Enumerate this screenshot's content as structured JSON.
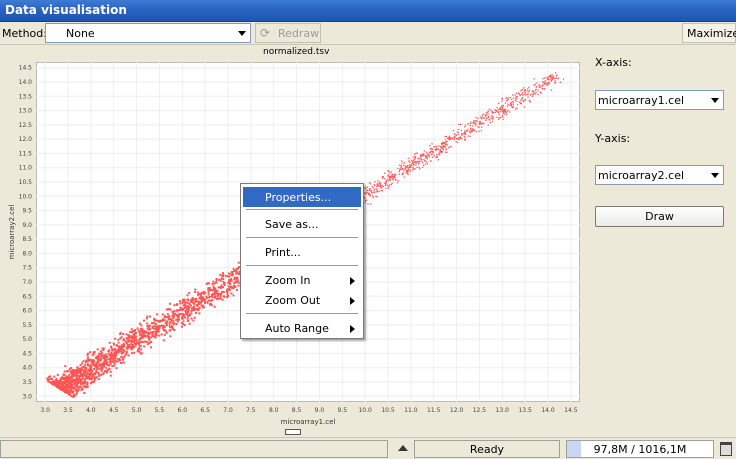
{
  "window": {
    "title": "Data visualisation"
  },
  "toolbar": {
    "method_label": "Method:",
    "method_value": "None",
    "redraw_label": "Redraw",
    "maximize_label": "Maximize"
  },
  "side": {
    "x_axis_label": "X-axis:",
    "x_axis_value": "microarray1.cel",
    "y_axis_label": "Y-axis:",
    "y_axis_value": "microarray2.cel",
    "draw_label": "Draw"
  },
  "context_menu": {
    "items": [
      {
        "label": "Properties..."
      },
      {
        "label": "Save as..."
      },
      {
        "label": "Print..."
      },
      {
        "label": "Zoom In"
      },
      {
        "label": "Zoom Out"
      },
      {
        "label": "Auto Range"
      }
    ]
  },
  "status": {
    "text": "Ready",
    "memory": "97,8M / 1016,1M",
    "memory_fraction": 0.096
  },
  "colors": {
    "points": "#ff5555",
    "titlebar": "#2a63c2",
    "highlight": "#316ac5"
  },
  "chart_data": {
    "type": "scatter",
    "title": "normalized.tsv",
    "xlabel": "microarray1.cel",
    "ylabel": "microarray2.cel",
    "xlim": [
      2.8,
      14.7
    ],
    "ylim": [
      2.8,
      14.7
    ],
    "x_ticks": [
      "3.0",
      "3.5",
      "4.0",
      "4.5",
      "5.0",
      "5.5",
      "6.0",
      "6.5",
      "7.0",
      "7.5",
      "8.0",
      "8.5",
      "9.0",
      "9.5",
      "10.0",
      "10.5",
      "11.0",
      "11.5",
      "12.0",
      "12.5",
      "13.0",
      "13.5",
      "14.0",
      "14.5"
    ],
    "y_ticks": [
      "3.0",
      "3.5",
      "4.0",
      "4.5",
      "5.0",
      "5.5",
      "6.0",
      "6.5",
      "7.0",
      "7.5",
      "8.0",
      "8.5",
      "9.0",
      "9.5",
      "10.0",
      "10.5",
      "11.0",
      "11.5",
      "12.0",
      "12.5",
      "13.0",
      "13.5",
      "14.0",
      "14.5"
    ],
    "grid": true,
    "series": [
      {
        "trend": "y ≈ x, dense cloud from (3.3, 3.3) to (14.2, 14.2), spread widening at low values",
        "anchors": [
          [
            3.3,
            3.35
          ],
          [
            4.0,
            4.0
          ],
          [
            5.0,
            5.0
          ],
          [
            6.0,
            6.0
          ],
          [
            7.0,
            7.0
          ],
          [
            8.0,
            8.0
          ],
          [
            9.0,
            9.0
          ],
          [
            10.0,
            10.0
          ],
          [
            11.0,
            11.0
          ],
          [
            12.0,
            12.0
          ],
          [
            13.0,
            13.0
          ],
          [
            14.0,
            14.0
          ],
          [
            14.2,
            14.2
          ]
        ]
      }
    ]
  }
}
